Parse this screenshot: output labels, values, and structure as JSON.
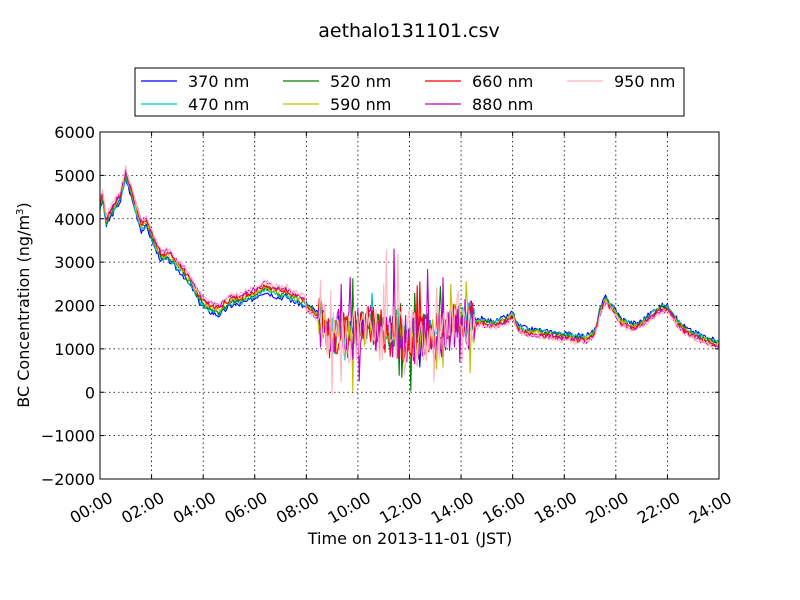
{
  "chart_data": {
    "type": "line",
    "title": "aethalo131101.csv",
    "xlabel": "Time on 2013-11-01 (JST)",
    "ylabel": "BC Concentration (ng/m",
    "ylabel_sup": "3",
    "ylabel_end": ")",
    "xlim": [
      0,
      24
    ],
    "ylim": [
      -2000,
      6000
    ],
    "grid": true,
    "legend_position": "top",
    "x_ticks": [
      {
        "v": 0,
        "label": "00:00"
      },
      {
        "v": 2,
        "label": "02:00"
      },
      {
        "v": 4,
        "label": "04:00"
      },
      {
        "v": 6,
        "label": "06:00"
      },
      {
        "v": 8,
        "label": "08:00"
      },
      {
        "v": 10,
        "label": "10:00"
      },
      {
        "v": 12,
        "label": "12:00"
      },
      {
        "v": 14,
        "label": "14:00"
      },
      {
        "v": 16,
        "label": "16:00"
      },
      {
        "v": 18,
        "label": "18:00"
      },
      {
        "v": 20,
        "label": "20:00"
      },
      {
        "v": 22,
        "label": "22:00"
      },
      {
        "v": 24,
        "label": "24:00"
      }
    ],
    "y_ticks": [
      {
        "v": -2000,
        "label": "−2000"
      },
      {
        "v": -1000,
        "label": "−1000"
      },
      {
        "v": 0,
        "label": "0"
      },
      {
        "v": 1000,
        "label": "1000"
      },
      {
        "v": 2000,
        "label": "2000"
      },
      {
        "v": 3000,
        "label": "3000"
      },
      {
        "v": 4000,
        "label": "4000"
      },
      {
        "v": 5000,
        "label": "5000"
      },
      {
        "v": 6000,
        "label": "6000"
      }
    ],
    "x": [
      0.0,
      0.1,
      0.25,
      0.4,
      0.6,
      0.8,
      1.0,
      1.2,
      1.4,
      1.6,
      1.8,
      2.0,
      2.2,
      2.4,
      2.6,
      2.8,
      3.0,
      3.2,
      3.4,
      3.6,
      3.8,
      4.0,
      4.2,
      4.4,
      4.6,
      4.8,
      5.0,
      5.2,
      5.4,
      5.6,
      5.8,
      6.0,
      6.2,
      6.4,
      6.6,
      6.8,
      7.0,
      7.2,
      7.4,
      7.6,
      7.8,
      8.0,
      8.2,
      8.4,
      8.6,
      8.8,
      9.0,
      9.2,
      9.4,
      9.6,
      9.8,
      10.0,
      10.2,
      10.4,
      10.6,
      10.8,
      11.0,
      11.2,
      11.4,
      11.6,
      11.8,
      12.0,
      12.2,
      12.4,
      12.6,
      12.8,
      13.0,
      13.2,
      13.4,
      13.6,
      13.8,
      14.0,
      14.2,
      14.4,
      14.6,
      14.8,
      15.0,
      15.2,
      15.4,
      15.6,
      15.8,
      16.0,
      16.2,
      16.4,
      16.6,
      16.8,
      17.0,
      17.2,
      17.4,
      17.6,
      17.8,
      18.0,
      18.2,
      18.4,
      18.6,
      18.8,
      19.0,
      19.2,
      19.4,
      19.6,
      19.8,
      20.0,
      20.2,
      20.4,
      20.6,
      20.8,
      21.0,
      21.2,
      21.4,
      21.6,
      21.8,
      22.0,
      22.2,
      22.4,
      22.6,
      22.8,
      23.0,
      23.2,
      23.4,
      23.6,
      23.8,
      24.0
    ],
    "series": [
      {
        "name": "370 nm",
        "color": "#0000ff",
        "offset": 0
      },
      {
        "name": "470 nm",
        "color": "#00bfbf",
        "offset": 1
      },
      {
        "name": "520 nm",
        "color": "#008000",
        "offset": 2
      },
      {
        "name": "590 nm",
        "color": "#bfbf00",
        "offset": 3
      },
      {
        "name": "660 nm",
        "color": "#ff0000",
        "offset": 4
      },
      {
        "name": "880 nm",
        "color": "#bf00bf",
        "offset": 5
      },
      {
        "name": "950 nm",
        "color": "#ffb6c1",
        "offset": 6
      }
    ],
    "base_values": [
      4300,
      4500,
      3900,
      4100,
      4300,
      4500,
      5000,
      4600,
      4200,
      3800,
      3900,
      3600,
      3300,
      3100,
      3150,
      3050,
      2900,
      2800,
      2600,
      2450,
      2200,
      2050,
      1950,
      1900,
      1850,
      1950,
      2050,
      2100,
      2100,
      2150,
      2200,
      2250,
      2350,
      2400,
      2350,
      2300,
      2250,
      2300,
      2200,
      2150,
      2100,
      2000,
      1900,
      1800,
      1700,
      1350,
      1300,
      1450,
      1600,
      1300,
      1400,
      1550,
      1450,
      1550,
      1500,
      1450,
      1400,
      1300,
      1400,
      1350,
      1200,
      1350,
      1300,
      1250,
      1400,
      1350,
      1350,
      1500,
      1450,
      1600,
      1750,
      1700,
      1650,
      1650,
      1600,
      1650,
      1600,
      1600,
      1600,
      1650,
      1700,
      1800,
      1500,
      1450,
      1400,
      1400,
      1400,
      1350,
      1350,
      1350,
      1300,
      1300,
      1300,
      1250,
      1250,
      1250,
      1300,
      1400,
      1900,
      2150,
      2000,
      1850,
      1650,
      1600,
      1550,
      1550,
      1600,
      1700,
      1800,
      1900,
      1950,
      1950,
      1800,
      1600,
      1500,
      1400,
      1350,
      1300,
      1250,
      1200,
      1150,
      1150
    ]
  },
  "legend": {
    "items": [
      "370 nm",
      "470 nm",
      "520 nm",
      "590 nm",
      "660 nm",
      "880 nm",
      "950 nm"
    ]
  }
}
